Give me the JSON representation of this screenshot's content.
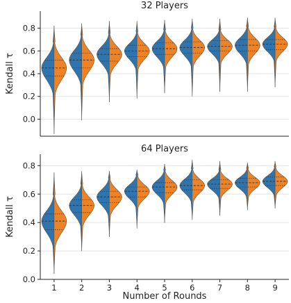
{
  "chart_data": {
    "type": "violin",
    "colors": {
      "left": "#2f74ad",
      "right": "#ec8427",
      "grid": "#e3e3e3"
    },
    "xlabel": "Number of Rounds",
    "ylabel": "Kendall τ",
    "categories": [
      "1",
      "2",
      "3",
      "4",
      "5",
      "6",
      "7",
      "8",
      "9"
    ],
    "panels": [
      {
        "title": "32 Players",
        "ylim": [
          -0.15,
          0.95
        ],
        "yticks": [
          "0.0",
          "0.2",
          "0.4",
          "0.6",
          "0.8"
        ],
        "ytick_values": [
          0.0,
          0.2,
          0.4,
          0.6,
          0.8
        ],
        "stats": [
          {
            "min": -0.13,
            "max": 0.82,
            "q1": 0.38,
            "median": 0.45,
            "q3": 0.52
          },
          {
            "min": -0.01,
            "max": 0.84,
            "q1": 0.45,
            "median": 0.52,
            "q3": 0.58
          },
          {
            "min": 0.15,
            "max": 0.86,
            "q1": 0.51,
            "median": 0.57,
            "q3": 0.62
          },
          {
            "min": 0.18,
            "max": 0.86,
            "q1": 0.55,
            "median": 0.6,
            "q3": 0.65
          },
          {
            "min": 0.23,
            "max": 0.87,
            "q1": 0.57,
            "median": 0.62,
            "q3": 0.67
          },
          {
            "min": 0.2,
            "max": 0.88,
            "q1": 0.58,
            "median": 0.63,
            "q3": 0.68
          },
          {
            "min": 0.24,
            "max": 0.88,
            "q1": 0.6,
            "median": 0.64,
            "q3": 0.69
          },
          {
            "min": 0.24,
            "max": 0.89,
            "q1": 0.6,
            "median": 0.65,
            "q3": 0.7
          },
          {
            "min": 0.28,
            "max": 0.89,
            "q1": 0.61,
            "median": 0.66,
            "q3": 0.7
          }
        ]
      },
      {
        "title": "64 Players",
        "ylim": [
          0.0,
          0.88
        ],
        "yticks": [
          "0.0",
          "0.2",
          "0.4",
          "0.6",
          "0.8"
        ],
        "ytick_values": [
          0.0,
          0.2,
          0.4,
          0.6,
          0.8
        ],
        "stats": [
          {
            "min": 0.04,
            "max": 0.75,
            "q1": 0.35,
            "median": 0.41,
            "q3": 0.46
          },
          {
            "min": 0.2,
            "max": 0.76,
            "q1": 0.47,
            "median": 0.52,
            "q3": 0.56
          },
          {
            "min": 0.3,
            "max": 0.76,
            "q1": 0.54,
            "median": 0.58,
            "q3": 0.62
          },
          {
            "min": 0.36,
            "max": 0.77,
            "q1": 0.58,
            "median": 0.62,
            "q3": 0.65
          },
          {
            "min": 0.4,
            "max": 0.81,
            "q1": 0.61,
            "median": 0.65,
            "q3": 0.68
          },
          {
            "min": 0.42,
            "max": 0.84,
            "q1": 0.63,
            "median": 0.66,
            "q3": 0.7
          },
          {
            "min": 0.45,
            "max": 0.83,
            "q1": 0.64,
            "median": 0.67,
            "q3": 0.7
          },
          {
            "min": 0.49,
            "max": 0.82,
            "q1": 0.65,
            "median": 0.68,
            "q3": 0.71
          },
          {
            "min": 0.5,
            "max": 0.83,
            "q1": 0.66,
            "median": 0.69,
            "q3": 0.72
          }
        ]
      }
    ]
  }
}
